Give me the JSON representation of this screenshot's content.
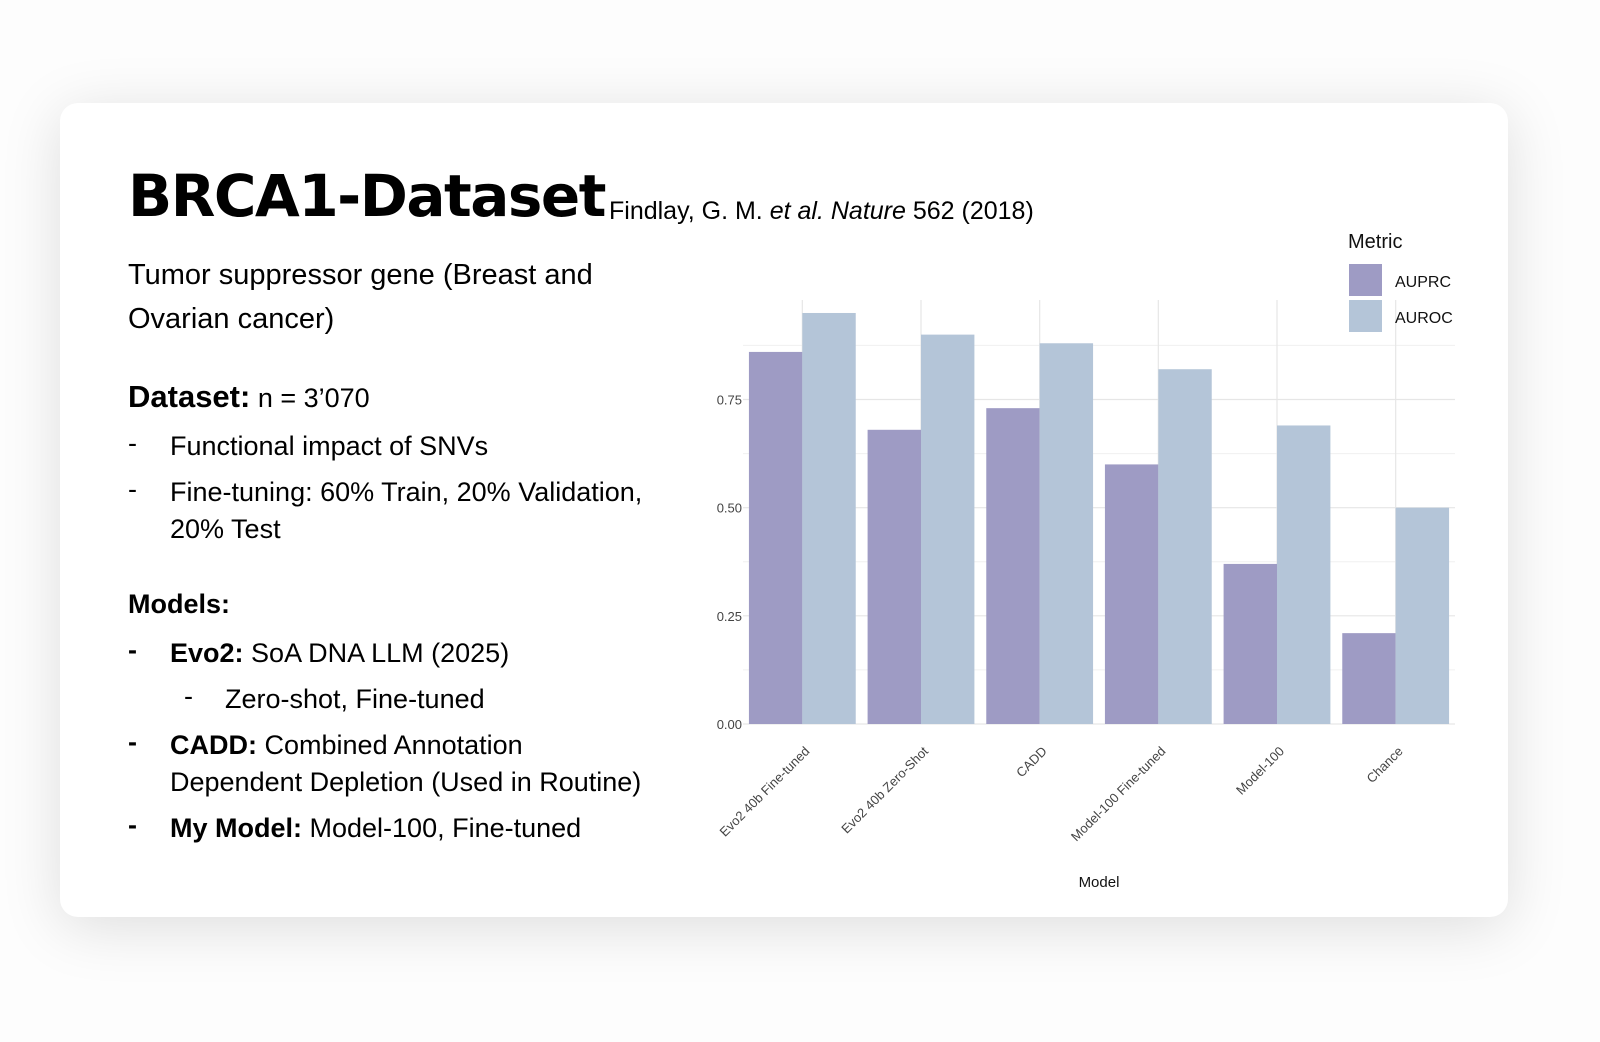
{
  "slide": {
    "title": "BRCA1-Dataset",
    "citation": {
      "authors": "Findlay, G. M.",
      "etal": "et al.",
      "journal": "Nature",
      "ref": "562 (2018)"
    },
    "subtitle": "Tumor suppressor gene (Breast and Ovarian cancer)",
    "dataset_heading": "Dataset:",
    "dataset_n": "n = 3’070",
    "dataset_items": [
      "Functional impact of SNVs",
      "Fine-tuning: 60% Train, 20% Validation,",
      "20% Test"
    ],
    "models_heading": "Models:",
    "models": [
      {
        "bold": "Evo2:",
        "text": "SoA DNA LLM (2025)"
      },
      {
        "sub": "Zero-shot, Fine-tuned"
      },
      {
        "bold": "CADD:",
        "text": "Combined Annotation",
        "text2": "Dependent Depletion (Used in Routine)"
      },
      {
        "bold": "My Model:",
        "text": "Model-100, Fine-tuned"
      }
    ],
    "dash": "-"
  },
  "chart_data": {
    "type": "bar",
    "categories": [
      "Evo2 40b Fine-tuned",
      "Evo2 40b Zero-Shot",
      "CADD",
      "Model-100 Fine-tuned",
      "Model-100",
      "Chance"
    ],
    "series": [
      {
        "name": "AUPRC",
        "color": "#9e9bc4",
        "values": [
          0.86,
          0.68,
          0.73,
          0.6,
          0.37,
          0.21
        ]
      },
      {
        "name": "AUROC",
        "color": "#b4c5d8",
        "values": [
          0.95,
          0.9,
          0.88,
          0.82,
          0.69,
          0.5
        ]
      }
    ],
    "xlabel": "Model",
    "ylabel": "",
    "yticks": [
      "0.00",
      "0.25",
      "0.50",
      "0.75"
    ],
    "ylim": [
      0,
      0.98
    ],
    "legend_title": "Metric",
    "legend_position": "top-right",
    "grid": true
  }
}
